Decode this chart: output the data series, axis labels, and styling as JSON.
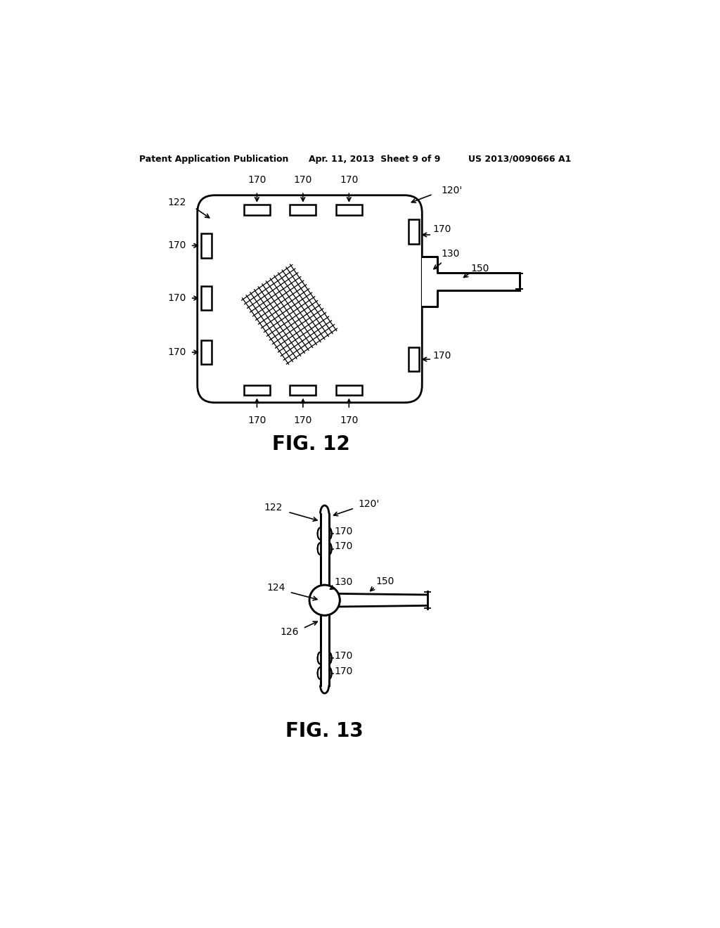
{
  "bg_color": "#ffffff",
  "header_left": "Patent Application Publication",
  "header_mid": "Apr. 11, 2013  Sheet 9 of 9",
  "header_right": "US 2013/0090666 A1",
  "fig12_label": "FIG. 12",
  "fig13_label": "FIG. 13",
  "line_color": "#000000",
  "text_color": "#000000",
  "lw_main": 2.0,
  "lw_slot": 1.8,
  "lw_label": 1.2
}
